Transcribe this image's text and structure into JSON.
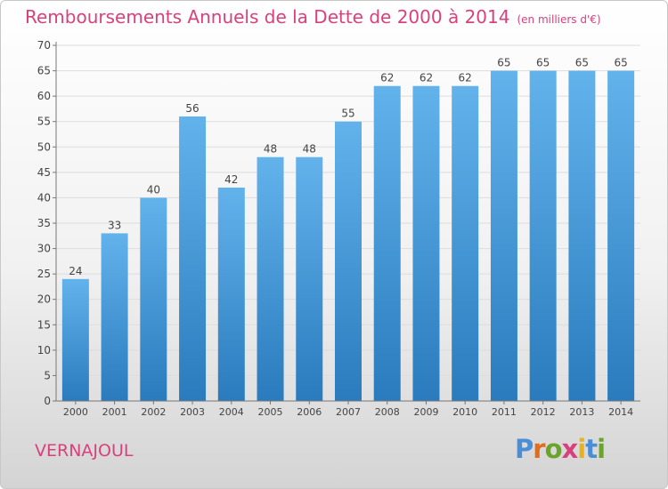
{
  "page": {
    "title": "Remboursements Annuels de la Dette de 2000 à 2014",
    "unit": "(en milliers d'€)",
    "commune": "VERNAJOUL",
    "logo": {
      "text": "Proxiti",
      "letter_colors": [
        "#4a8fd6",
        "#e36c1c",
        "#6aa52a",
        "#d9417c",
        "#e9b21d",
        "#4a8fd6",
        "#6aa52a"
      ]
    }
  },
  "chart_data": {
    "type": "bar",
    "title": "Remboursements Annuels de la Dette de 2000 à 2014",
    "subtitle": "(en milliers d'€)",
    "categories": [
      "2000",
      "2001",
      "2002",
      "2003",
      "2004",
      "2005",
      "2006",
      "2007",
      "2008",
      "2009",
      "2010",
      "2011",
      "2012",
      "2013",
      "2014"
    ],
    "values": [
      24,
      33,
      40,
      56,
      42,
      48,
      48,
      55,
      62,
      62,
      62,
      65,
      65,
      65,
      65
    ],
    "ylim": [
      0,
      70
    ],
    "yticks": [
      0,
      5,
      10,
      15,
      20,
      25,
      30,
      35,
      40,
      45,
      50,
      55,
      60,
      65,
      70
    ],
    "grid": true,
    "colors": {
      "bar_top": "#62b3ec",
      "bar_bottom": "#2a7bbd",
      "grid": "#dddddd",
      "axis": "#777777",
      "label": "#444444",
      "accent": "#d9417c"
    }
  }
}
